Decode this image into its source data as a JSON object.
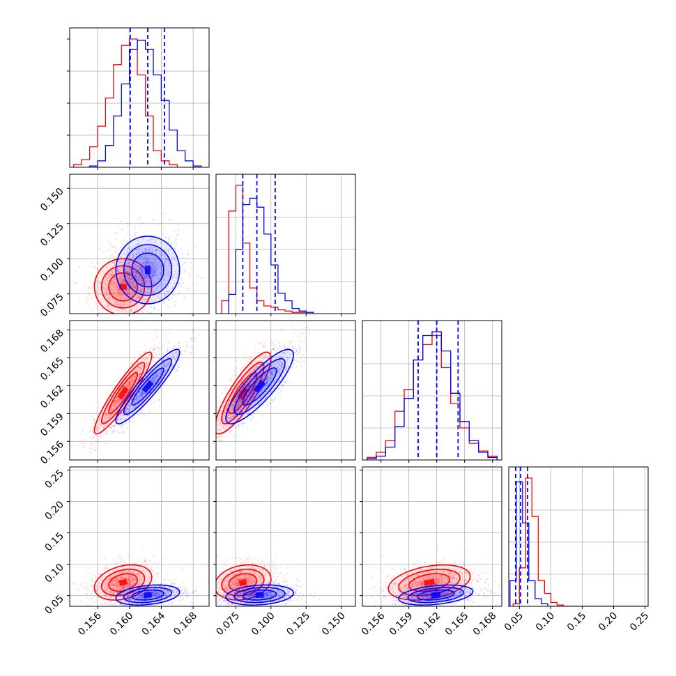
{
  "chart_data": {
    "type": "corner",
    "dimensions": [
      {
        "range": [
          0.1525,
          0.17
        ],
        "ticks": [
          0.156,
          0.16,
          0.164,
          0.168
        ],
        "tick_labels": [
          "0.156",
          "0.160",
          "0.164",
          "0.168"
        ]
      },
      {
        "range": [
          0.061,
          0.16
        ],
        "ticks": [
          0.075,
          0.1,
          0.125,
          0.15
        ],
        "tick_labels": [
          "0.075",
          "0.100",
          "0.125",
          "0.150"
        ]
      },
      {
        "range": [
          0.154,
          0.169
        ],
        "ticks": [
          0.156,
          0.159,
          0.162,
          0.165,
          0.168
        ],
        "tick_labels": [
          "0.156",
          "0.159",
          "0.162",
          "0.165",
          "0.168"
        ]
      },
      {
        "range": [
          0.033,
          0.255
        ],
        "ticks": [
          0.05,
          0.1,
          0.15,
          0.2,
          0.25
        ],
        "tick_labels": [
          "0.05",
          "0.10",
          "0.15",
          "0.20",
          "0.25"
        ]
      }
    ],
    "grid": true,
    "series": [
      {
        "color": "#ff0000",
        "means": [
          0.1592,
          0.08,
          0.1612,
          0.071
        ],
        "sds": [
          0.0018,
          0.01,
          0.0022,
          0.014
        ],
        "histograms": [
          [
            {
              "x": 0.153,
              "h": 0.02
            },
            {
              "x": 0.154,
              "h": 0.06
            },
            {
              "x": 0.155,
              "h": 0.16
            },
            {
              "x": 0.156,
              "h": 0.32
            },
            {
              "x": 0.157,
              "h": 0.54
            },
            {
              "x": 0.158,
              "h": 0.8
            },
            {
              "x": 0.159,
              "h": 0.95
            },
            {
              "x": 0.16,
              "h": 1.0
            },
            {
              "x": 0.161,
              "h": 0.72
            },
            {
              "x": 0.162,
              "h": 0.4
            },
            {
              "x": 0.163,
              "h": 0.13
            },
            {
              "x": 0.164,
              "h": 0.05
            },
            {
              "x": 0.165,
              "h": 0.02
            },
            {
              "x": 0.166,
              "h": 0.0
            }
          ],
          [
            {
              "x": 0.065,
              "h": 0.1
            },
            {
              "x": 0.07,
              "h": 0.8
            },
            {
              "x": 0.075,
              "h": 1.0
            },
            {
              "x": 0.08,
              "h": 0.55
            },
            {
              "x": 0.085,
              "h": 0.2
            },
            {
              "x": 0.09,
              "h": 0.1
            },
            {
              "x": 0.095,
              "h": 0.06
            },
            {
              "x": 0.1,
              "h": 0.05
            },
            {
              "x": 0.105,
              "h": 0.03
            },
            {
              "x": 0.11,
              "h": 0.02
            },
            {
              "x": 0.115,
              "h": 0.01
            },
            {
              "x": 0.12,
              "h": 0.01
            },
            {
              "x": 0.125,
              "h": 0.0
            }
          ],
          [
            {
              "x": 0.1545,
              "h": 0.02
            },
            {
              "x": 0.1555,
              "h": 0.06
            },
            {
              "x": 0.1565,
              "h": 0.15
            },
            {
              "x": 0.1575,
              "h": 0.38
            },
            {
              "x": 0.1585,
              "h": 0.55
            },
            {
              "x": 0.1595,
              "h": 0.78
            },
            {
              "x": 0.1605,
              "h": 0.9
            },
            {
              "x": 0.1615,
              "h": 0.97
            },
            {
              "x": 0.1625,
              "h": 0.72
            },
            {
              "x": 0.1635,
              "h": 0.44
            },
            {
              "x": 0.1645,
              "h": 0.25
            },
            {
              "x": 0.1655,
              "h": 0.13
            },
            {
              "x": 0.1665,
              "h": 0.07
            },
            {
              "x": 0.1675,
              "h": 0.03
            },
            {
              "x": 0.1685,
              "h": 0.0
            }
          ],
          [
            {
              "x": 0.04,
              "h": 0.02
            },
            {
              "x": 0.05,
              "h": 0.3
            },
            {
              "x": 0.06,
              "h": 1.0
            },
            {
              "x": 0.07,
              "h": 0.7
            },
            {
              "x": 0.08,
              "h": 0.2
            },
            {
              "x": 0.09,
              "h": 0.1
            },
            {
              "x": 0.1,
              "h": 0.03
            },
            {
              "x": 0.11,
              "h": 0.01
            },
            {
              "x": 0.12,
              "h": 0.0
            },
            {
              "x": 0.25,
              "h": 0.0
            }
          ]
        ]
      },
      {
        "color": "#0000ff",
        "means": [
          0.1623,
          0.092,
          0.1619,
          0.051
        ],
        "sds": [
          0.002,
          0.012,
          0.002,
          0.008
        ],
        "histograms": [
          [
            {
              "x": 0.155,
              "h": 0.01
            },
            {
              "x": 0.156,
              "h": 0.05
            },
            {
              "x": 0.157,
              "h": 0.17
            },
            {
              "x": 0.158,
              "h": 0.4
            },
            {
              "x": 0.159,
              "h": 0.65
            },
            {
              "x": 0.16,
              "h": 0.92
            },
            {
              "x": 0.161,
              "h": 0.99
            },
            {
              "x": 0.162,
              "h": 0.92
            },
            {
              "x": 0.163,
              "h": 0.72
            },
            {
              "x": 0.164,
              "h": 0.52
            },
            {
              "x": 0.165,
              "h": 0.29
            },
            {
              "x": 0.166,
              "h": 0.13
            },
            {
              "x": 0.167,
              "h": 0.05
            },
            {
              "x": 0.168,
              "h": 0.01
            },
            {
              "x": 0.169,
              "h": 0.0
            }
          ],
          [
            {
              "x": 0.07,
              "h": 0.15
            },
            {
              "x": 0.075,
              "h": 0.5
            },
            {
              "x": 0.08,
              "h": 0.85
            },
            {
              "x": 0.085,
              "h": 0.9
            },
            {
              "x": 0.09,
              "h": 0.83
            },
            {
              "x": 0.095,
              "h": 0.62
            },
            {
              "x": 0.1,
              "h": 0.38
            },
            {
              "x": 0.105,
              "h": 0.16
            },
            {
              "x": 0.11,
              "h": 0.1
            },
            {
              "x": 0.115,
              "h": 0.04
            },
            {
              "x": 0.12,
              "h": 0.02
            },
            {
              "x": 0.125,
              "h": 0.01
            },
            {
              "x": 0.13,
              "h": 0.0
            }
          ],
          [
            {
              "x": 0.1545,
              "h": 0.01
            },
            {
              "x": 0.1555,
              "h": 0.03
            },
            {
              "x": 0.1565,
              "h": 0.1
            },
            {
              "x": 0.1575,
              "h": 0.26
            },
            {
              "x": 0.1585,
              "h": 0.48
            },
            {
              "x": 0.1595,
              "h": 0.78
            },
            {
              "x": 0.1605,
              "h": 0.97
            },
            {
              "x": 0.1615,
              "h": 1.0
            },
            {
              "x": 0.1625,
              "h": 0.85
            },
            {
              "x": 0.1635,
              "h": 0.52
            },
            {
              "x": 0.1645,
              "h": 0.3
            },
            {
              "x": 0.1655,
              "h": 0.15
            },
            {
              "x": 0.1665,
              "h": 0.06
            },
            {
              "x": 0.1675,
              "h": 0.02
            },
            {
              "x": 0.1685,
              "h": 0.0
            }
          ],
          [
            {
              "x": 0.035,
              "h": 0.2
            },
            {
              "x": 0.045,
              "h": 0.97
            },
            {
              "x": 0.055,
              "h": 0.65
            },
            {
              "x": 0.065,
              "h": 0.2
            },
            {
              "x": 0.075,
              "h": 0.06
            },
            {
              "x": 0.085,
              "h": 0.02
            },
            {
              "x": 0.095,
              "h": 0.0
            },
            {
              "x": 0.25,
              "h": 0.0
            }
          ]
        ]
      }
    ],
    "correlations": [
      [
        1,
        2,
        0.85
      ],
      [
        0,
        2,
        0.92
      ],
      [
        1,
        2,
        0.6
      ],
      [
        0,
        3,
        0.3
      ],
      [
        1,
        3,
        0.2
      ],
      [
        2,
        3,
        0.35
      ]
    ],
    "quantiles": [
      {
        "dim": 0,
        "values": [
          0.1601,
          0.1623,
          0.1644
        ]
      },
      {
        "dim": 1,
        "values": [
          0.08,
          0.09,
          0.103
        ]
      },
      {
        "dim": 2,
        "values": [
          0.16,
          0.162,
          0.1643
        ]
      },
      {
        "dim": 3,
        "values": [
          0.044,
          0.052,
          0.063
        ]
      }
    ]
  }
}
